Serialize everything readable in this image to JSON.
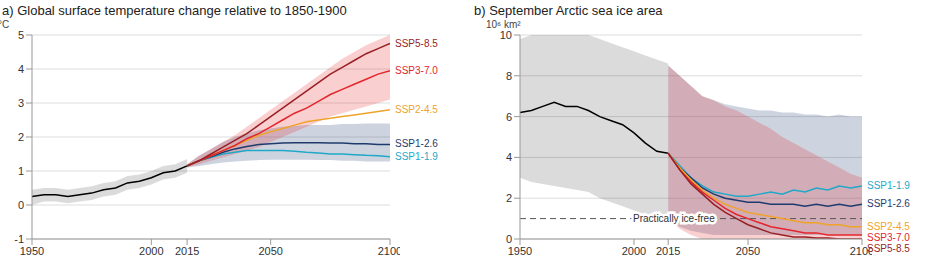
{
  "chart_data": [
    {
      "type": "line",
      "title": "a) Global surface temperature change relative to 1850-1900",
      "y_label": "°C",
      "x": [
        1950,
        1955,
        1960,
        1965,
        1970,
        1975,
        1980,
        1985,
        1990,
        1995,
        2000,
        2005,
        2010,
        2015,
        2020,
        2025,
        2030,
        2035,
        2040,
        2045,
        2050,
        2055,
        2060,
        2065,
        2070,
        2075,
        2080,
        2085,
        2090,
        2095,
        2100
      ],
      "xlim": [
        1950,
        2100
      ],
      "xticks": [
        1950,
        2000,
        2015,
        2050,
        2100
      ],
      "ylim": [
        -1,
        5
      ],
      "yticks": [
        -1,
        0,
        1,
        2,
        3,
        4,
        5
      ],
      "grid": true,
      "legend": "right",
      "series": [
        {
          "color": "#000000",
          "values": [
            0.25,
            0.3,
            0.3,
            0.25,
            0.3,
            0.35,
            0.45,
            0.5,
            0.65,
            0.7,
            0.8,
            0.95,
            1.0,
            1.15,
            null,
            null,
            null,
            null,
            null,
            null,
            null,
            null,
            null,
            null,
            null,
            null,
            null,
            null,
            null,
            null,
            null
          ],
          "band": {
            "low": [
              0.0,
              0.1,
              0.1,
              0.05,
              0.1,
              0.15,
              0.25,
              0.3,
              0.45,
              0.5,
              0.6,
              0.75,
              0.8,
              0.95,
              null,
              null,
              null,
              null,
              null,
              null,
              null,
              null,
              null,
              null,
              null,
              null,
              null,
              null,
              null,
              null,
              null
            ],
            "high": [
              0.45,
              0.5,
              0.5,
              0.45,
              0.5,
              0.55,
              0.65,
              0.7,
              0.85,
              0.9,
              1.0,
              1.15,
              1.2,
              1.35,
              null,
              null,
              null,
              null,
              null,
              null,
              null,
              null,
              null,
              null,
              null,
              null,
              null,
              null,
              null,
              null,
              null
            ]
          }
        },
        {
          "name": "SSP1-1.9",
          "color": "#1fa8c9",
          "values": [
            null,
            null,
            null,
            null,
            null,
            null,
            null,
            null,
            null,
            null,
            null,
            null,
            null,
            1.15,
            1.3,
            1.4,
            1.5,
            1.55,
            1.6,
            1.6,
            1.6,
            1.6,
            1.58,
            1.55,
            1.53,
            1.5,
            1.5,
            1.48,
            1.46,
            1.45,
            1.42
          ]
        },
        {
          "name": "SSP1-2.6",
          "color": "#1f3b6e",
          "values": [
            null,
            null,
            null,
            null,
            null,
            null,
            null,
            null,
            null,
            null,
            null,
            null,
            null,
            1.15,
            1.3,
            1.42,
            1.55,
            1.65,
            1.72,
            1.78,
            1.8,
            1.82,
            1.83,
            1.83,
            1.83,
            1.82,
            1.82,
            1.8,
            1.8,
            1.78,
            1.78
          ],
          "band": {
            "low": [
              null,
              null,
              null,
              null,
              null,
              null,
              null,
              null,
              null,
              null,
              null,
              null,
              null,
              1.1,
              1.15,
              1.2,
              1.25,
              1.28,
              1.3,
              1.32,
              1.33,
              1.33,
              1.33,
              1.33,
              1.32,
              1.32,
              1.3,
              1.3,
              1.28,
              1.28,
              1.28
            ],
            "high": [
              null,
              null,
              null,
              null,
              null,
              null,
              null,
              null,
              null,
              null,
              null,
              null,
              null,
              1.2,
              1.45,
              1.65,
              1.85,
              2.0,
              2.1,
              2.2,
              2.25,
              2.3,
              2.32,
              2.35,
              2.35,
              2.35,
              2.38,
              2.38,
              2.4,
              2.4,
              2.4
            ]
          }
        },
        {
          "name": "SSP2-4.5",
          "color": "#f0a32a",
          "values": [
            null,
            null,
            null,
            null,
            null,
            null,
            null,
            null,
            null,
            null,
            null,
            null,
            null,
            1.15,
            1.3,
            1.45,
            1.6,
            1.75,
            1.9,
            2.05,
            2.15,
            2.25,
            2.35,
            2.45,
            2.5,
            2.55,
            2.6,
            2.65,
            2.7,
            2.75,
            2.8
          ]
        },
        {
          "name": "SSP3-7.0",
          "color": "#e3262b",
          "values": [
            null,
            null,
            null,
            null,
            null,
            null,
            null,
            null,
            null,
            null,
            null,
            null,
            null,
            1.15,
            1.3,
            1.45,
            1.6,
            1.75,
            1.95,
            2.1,
            2.3,
            2.5,
            2.7,
            2.85,
            3.05,
            3.25,
            3.4,
            3.55,
            3.7,
            3.85,
            3.95
          ],
          "band": {
            "low": [
              null,
              null,
              null,
              null,
              null,
              null,
              null,
              null,
              null,
              null,
              null,
              null,
              null,
              1.1,
              1.2,
              1.3,
              1.4,
              1.5,
              1.6,
              1.7,
              1.85,
              2.0,
              2.15,
              2.3,
              2.45,
              2.6,
              2.7,
              2.8,
              2.9,
              3.0,
              3.1
            ],
            "high": [
              null,
              null,
              null,
              null,
              null,
              null,
              null,
              null,
              null,
              null,
              null,
              null,
              null,
              1.2,
              1.45,
              1.65,
              1.85,
              2.05,
              2.3,
              2.55,
              2.8,
              3.05,
              3.3,
              3.55,
              3.8,
              4.05,
              4.3,
              4.5,
              4.7,
              4.85,
              5.0
            ]
          }
        },
        {
          "name": "SSP5-8.5",
          "color": "#981f24",
          "values": [
            null,
            null,
            null,
            null,
            null,
            null,
            null,
            null,
            null,
            null,
            null,
            null,
            null,
            1.15,
            1.3,
            1.5,
            1.7,
            1.9,
            2.1,
            2.35,
            2.6,
            2.85,
            3.1,
            3.35,
            3.6,
            3.85,
            4.05,
            4.25,
            4.45,
            4.6,
            4.75
          ]
        }
      ]
    },
    {
      "type": "line",
      "title": "b) September Arctic sea ice area",
      "y_label": "10⁶ km²",
      "x": [
        1950,
        1955,
        1960,
        1965,
        1970,
        1975,
        1980,
        1985,
        1990,
        1995,
        2000,
        2005,
        2010,
        2015,
        2020,
        2025,
        2030,
        2035,
        2040,
        2045,
        2050,
        2055,
        2060,
        2065,
        2070,
        2075,
        2080,
        2085,
        2090,
        2095,
        2100
      ],
      "xlim": [
        1950,
        2100
      ],
      "xticks": [
        1950,
        2000,
        2015,
        2050,
        2100
      ],
      "ylim": [
        0,
        10
      ],
      "yticks": [
        0,
        2,
        4,
        6,
        8,
        10
      ],
      "grid": true,
      "legend": "right",
      "annotations": [
        {
          "text": "Practically ice-free",
          "y": 1,
          "line_style": "dashed"
        }
      ],
      "series": [
        {
          "color": "#000000",
          "values": [
            6.2,
            6.3,
            6.5,
            6.7,
            6.5,
            6.5,
            6.3,
            6.0,
            5.8,
            5.6,
            5.2,
            4.7,
            4.3,
            4.2,
            null,
            null,
            null,
            null,
            null,
            null,
            null,
            null,
            null,
            null,
            null,
            null,
            null,
            null,
            null,
            null,
            null
          ],
          "band": {
            "low": [
              3.0,
              2.8,
              2.7,
              2.6,
              2.5,
              2.4,
              2.3,
              2.0,
              1.8,
              1.6,
              1.4,
              1.2,
              1.0,
              0.9,
              null,
              null,
              null,
              null,
              null,
              null,
              null,
              null,
              null,
              null,
              null,
              null,
              null,
              null,
              null,
              null,
              null
            ],
            "high": [
              9.8,
              10,
              10,
              10,
              10,
              10,
              10,
              9.8,
              9.6,
              9.4,
              9.2,
              9.0,
              8.8,
              8.6,
              null,
              null,
              null,
              null,
              null,
              null,
              null,
              null,
              null,
              null,
              null,
              null,
              null,
              null,
              null,
              null,
              null
            ]
          }
        },
        {
          "name": "SSP1-1.9",
          "color": "#1fa8c9",
          "values": [
            null,
            null,
            null,
            null,
            null,
            null,
            null,
            null,
            null,
            null,
            null,
            null,
            null,
            4.2,
            3.6,
            3.0,
            2.6,
            2.3,
            2.2,
            2.1,
            2.1,
            2.2,
            2.3,
            2.2,
            2.4,
            2.3,
            2.5,
            2.4,
            2.6,
            2.5,
            2.6
          ]
        },
        {
          "name": "SSP1-2.6",
          "color": "#1f3b6e",
          "values": [
            null,
            null,
            null,
            null,
            null,
            null,
            null,
            null,
            null,
            null,
            null,
            null,
            null,
            4.2,
            3.5,
            3.0,
            2.5,
            2.2,
            2.0,
            1.9,
            1.8,
            1.8,
            1.7,
            1.7,
            1.7,
            1.6,
            1.7,
            1.6,
            1.7,
            1.6,
            1.7
          ],
          "band": {
            "low": [
              null,
              null,
              null,
              null,
              null,
              null,
              null,
              null,
              null,
              null,
              null,
              null,
              null,
              1.0,
              0.6,
              0.4,
              0.3,
              0.2,
              0.2,
              0.2,
              0.2,
              0.2,
              0.2,
              0.2,
              0.2,
              0.2,
              0.2,
              0.2,
              0.2,
              0.2,
              0.2
            ],
            "high": [
              null,
              null,
              null,
              null,
              null,
              null,
              null,
              null,
              null,
              null,
              null,
              null,
              null,
              8.5,
              8.0,
              7.5,
              7.0,
              6.8,
              6.6,
              6.5,
              6.4,
              6.3,
              6.3,
              6.2,
              6.2,
              6.1,
              6.1,
              6.0,
              6.1,
              6.0,
              6.0
            ]
          }
        },
        {
          "name": "SSP2-4.5",
          "color": "#f0a32a",
          "values": [
            null,
            null,
            null,
            null,
            null,
            null,
            null,
            null,
            null,
            null,
            null,
            null,
            null,
            4.2,
            3.5,
            2.9,
            2.4,
            2.0,
            1.7,
            1.5,
            1.3,
            1.2,
            1.1,
            1.0,
            0.9,
            0.8,
            0.8,
            0.7,
            0.7,
            0.6,
            0.6
          ]
        },
        {
          "name": "SSP3-7.0",
          "color": "#e3262b",
          "values": [
            null,
            null,
            null,
            null,
            null,
            null,
            null,
            null,
            null,
            null,
            null,
            null,
            null,
            4.2,
            3.4,
            2.8,
            2.3,
            1.9,
            1.5,
            1.2,
            1.0,
            0.8,
            0.6,
            0.5,
            0.4,
            0.3,
            0.3,
            0.2,
            0.2,
            0.2,
            0.2
          ],
          "band": {
            "low": [
              null,
              null,
              null,
              null,
              null,
              null,
              null,
              null,
              null,
              null,
              null,
              null,
              null,
              1.0,
              0.5,
              0.2,
              0,
              0,
              0,
              0,
              0,
              0,
              0,
              0,
              0,
              0,
              0,
              0,
              0,
              0,
              0
            ],
            "high": [
              null,
              null,
              null,
              null,
              null,
              null,
              null,
              null,
              null,
              null,
              null,
              null,
              null,
              8.5,
              8.0,
              7.5,
              7.0,
              6.8,
              6.5,
              6.3,
              6.0,
              5.7,
              5.4,
              5.0,
              4.7,
              4.4,
              4.1,
              3.8,
              3.5,
              3.2,
              3.0
            ]
          }
        },
        {
          "name": "SSP5-8.5",
          "color": "#981f24",
          "values": [
            null,
            null,
            null,
            null,
            null,
            null,
            null,
            null,
            null,
            null,
            null,
            null,
            null,
            4.2,
            3.4,
            2.7,
            2.2,
            1.7,
            1.3,
            1.0,
            0.7,
            0.5,
            0.3,
            0.2,
            0.1,
            0.1,
            0.05,
            0.05,
            0,
            0,
            0
          ]
        }
      ]
    }
  ]
}
